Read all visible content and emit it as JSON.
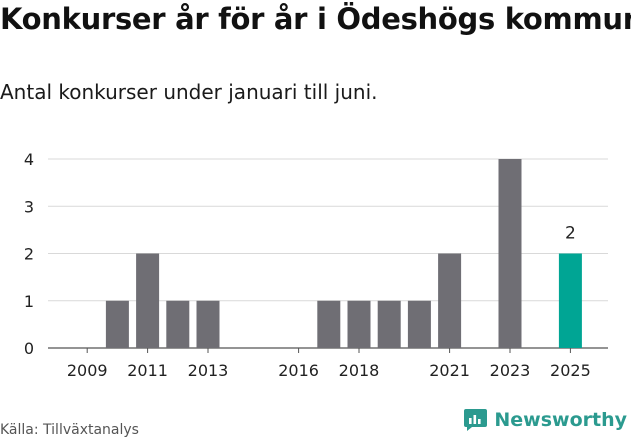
{
  "title": "Konkurser år för år i Ödeshögs kommun",
  "subtitle": "Antal konkurser under januari till juni.",
  "source": "Källa: Tillväxtanalys",
  "brand": "Newsworthy",
  "colors": {
    "bar": "#6f6e74",
    "highlight": "#00a594",
    "brand": "#2b9a8f",
    "grid": "#d9d9d9"
  },
  "chart_data": {
    "type": "bar",
    "title": "Konkurser år för år i Ödeshögs kommun",
    "subtitle": "Antal konkurser under januari till juni.",
    "xlabel": "",
    "ylabel": "",
    "x_range": [
      2008,
      2026
    ],
    "ylim": [
      0,
      4
    ],
    "yticks": [
      0,
      1,
      2,
      3,
      4
    ],
    "xticks": [
      2009,
      2011,
      2013,
      2016,
      2018,
      2021,
      2023,
      2025
    ],
    "grid": true,
    "x": [
      2009,
      2010,
      2011,
      2012,
      2013,
      2014,
      2015,
      2016,
      2017,
      2018,
      2019,
      2020,
      2021,
      2022,
      2023,
      2024,
      2025
    ],
    "values": [
      0,
      1,
      2,
      1,
      1,
      0,
      0,
      0,
      1,
      1,
      1,
      1,
      2,
      0,
      4,
      0,
      2
    ],
    "highlight": {
      "x": 2025,
      "label": "2"
    }
  }
}
